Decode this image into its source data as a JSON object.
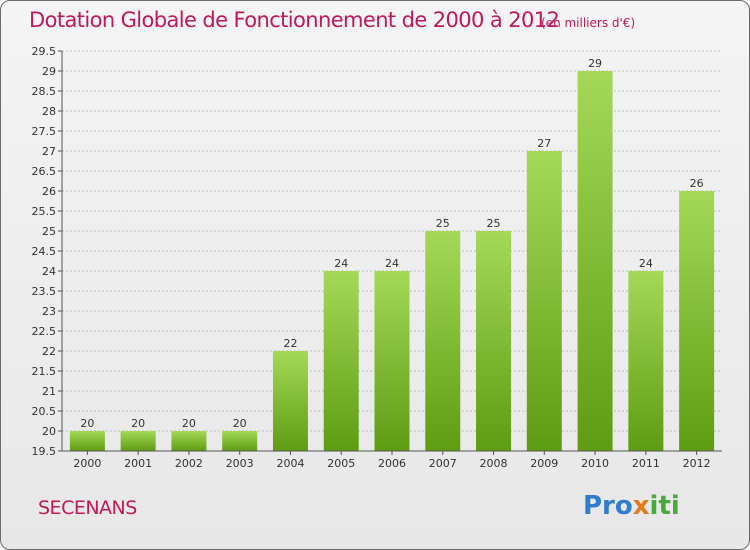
{
  "header": {
    "title": "Dotation Globale de Fonctionnement de 2000 à 2012",
    "unit": "(en milliers d'€)"
  },
  "footer": {
    "town": "SECENANS",
    "logo": {
      "p1": "Pro",
      "p2": "x",
      "p3": "iti"
    }
  },
  "chart_data": {
    "type": "bar",
    "title": "Dotation Globale de Fonctionnement de 2000 à 2012",
    "subtitle": "(en milliers d'€)",
    "categories": [
      "2000",
      "2001",
      "2002",
      "2003",
      "2004",
      "2005",
      "2006",
      "2007",
      "2008",
      "2009",
      "2010",
      "2011",
      "2012"
    ],
    "values": [
      20,
      20,
      20,
      20,
      22,
      24,
      24,
      25,
      25,
      27,
      29,
      24,
      26
    ],
    "ylim": [
      19.5,
      29.5
    ],
    "yticks": [
      "19.5",
      "20",
      "20.5",
      "21",
      "21.5",
      "22",
      "22.5",
      "23",
      "23.5",
      "24",
      "24.5",
      "25",
      "25.5",
      "26",
      "26.5",
      "27",
      "27.5",
      "28",
      "28.5",
      "29",
      "29.5"
    ],
    "grid": true,
    "colors": {
      "bar_top": "#9fd44f",
      "bar_bottom": "#5f9e14",
      "grid": "#bdbdbd",
      "text_accent": "#c0185a"
    }
  }
}
